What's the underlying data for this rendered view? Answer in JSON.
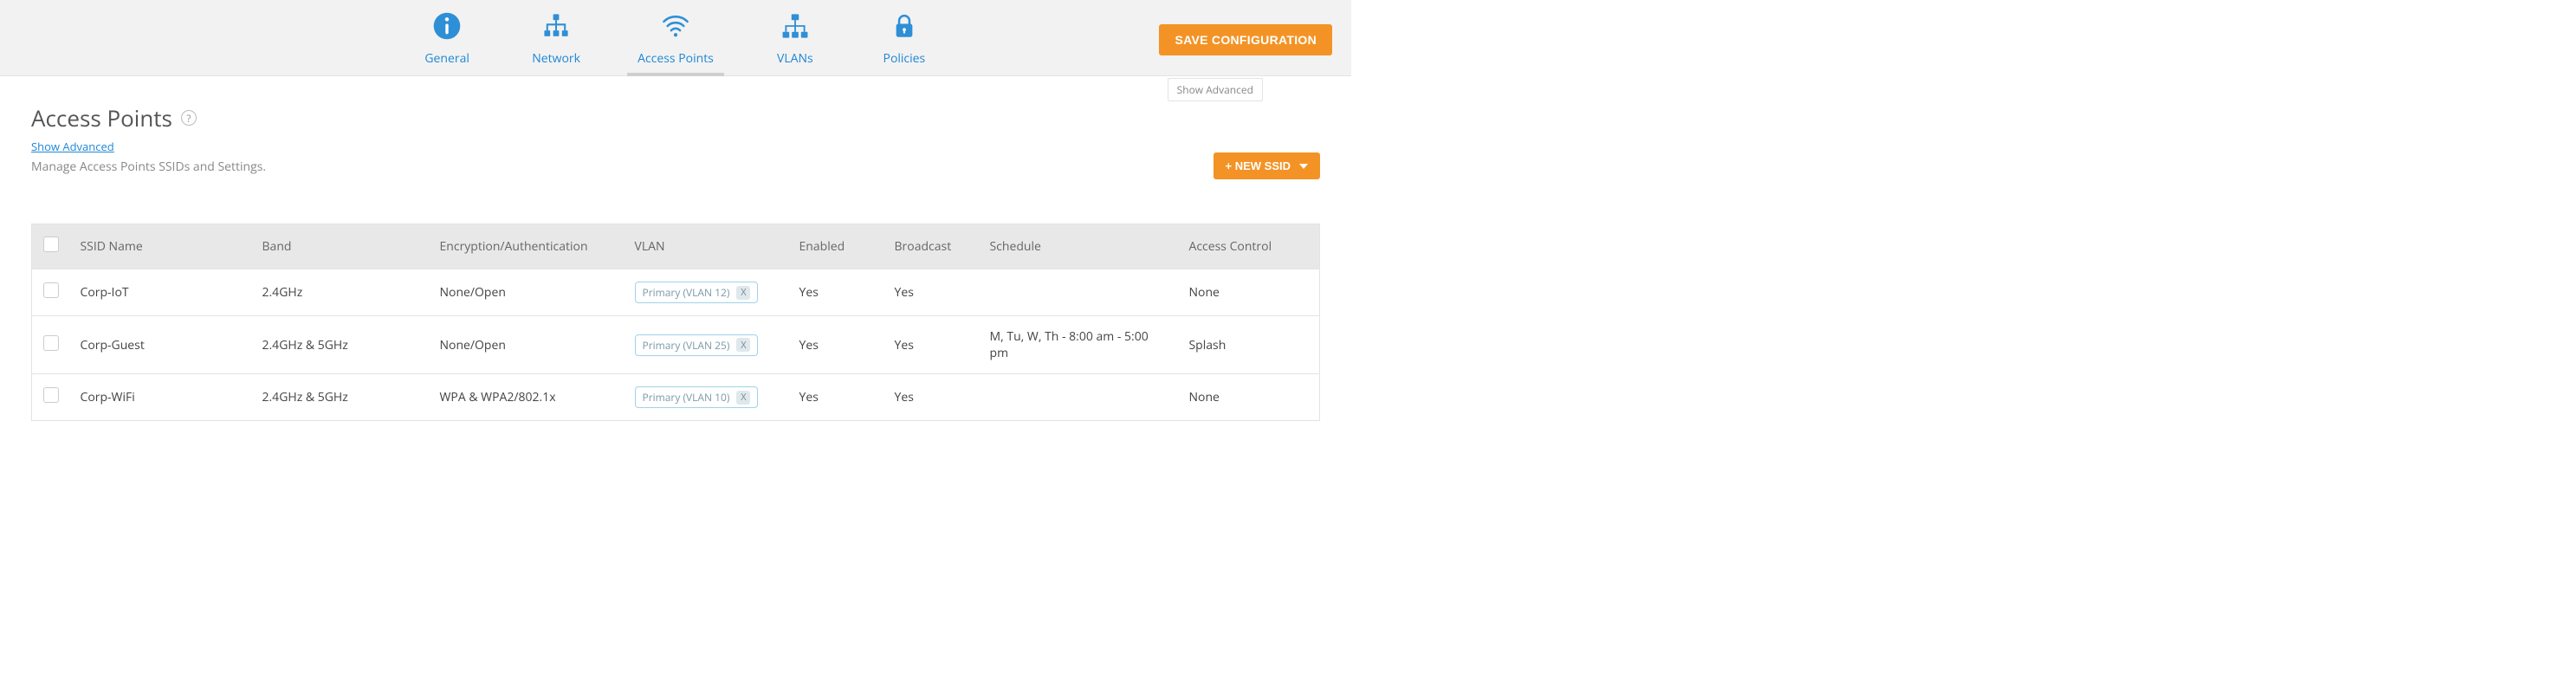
{
  "topbar": {
    "tabs": [
      {
        "key": "general",
        "label": "General"
      },
      {
        "key": "network",
        "label": "Network"
      },
      {
        "key": "access_points",
        "label": "Access Points"
      },
      {
        "key": "vlans",
        "label": "VLANs"
      },
      {
        "key": "policies",
        "label": "Policies"
      }
    ],
    "active_tab": "access_points",
    "save_label": "SAVE CONFIGURATION",
    "show_advanced_label": "Show Advanced"
  },
  "page": {
    "title": "Access Points",
    "show_advanced_link": "Show Advanced",
    "subtitle": "Manage Access Points SSIDs and Settings.",
    "new_ssid_label": "+ NEW SSID"
  },
  "table": {
    "columns": {
      "ssid": "SSID Name",
      "band": "Band",
      "enc": "Encryption/Authentication",
      "vlan": "VLAN",
      "enabled": "Enabled",
      "broadcast": "Broadcast",
      "schedule": "Schedule",
      "acl": "Access Control"
    },
    "rows": [
      {
        "ssid": "Corp-IoT",
        "band": "2.4GHz",
        "enc": "None/Open",
        "vlan": "Primary (VLAN 12)",
        "enabled": "Yes",
        "broadcast": "Yes",
        "schedule": "",
        "acl": "None"
      },
      {
        "ssid": "Corp-Guest",
        "band": "2.4GHz & 5GHz",
        "enc": "None/Open",
        "vlan": "Primary (VLAN 25)",
        "enabled": "Yes",
        "broadcast": "Yes",
        "schedule": "M, Tu, W, Th - 8:00 am - 5:00 pm",
        "acl": "Splash"
      },
      {
        "ssid": "Corp-WiFi",
        "band": "2.4GHz & 5GHz",
        "enc": "WPA & WPA2/802.1x",
        "vlan": "Primary (VLAN 10)",
        "enabled": "Yes",
        "broadcast": "Yes",
        "schedule": "",
        "acl": "None"
      }
    ]
  },
  "colors": {
    "accent_blue": "#2f8fd6",
    "accent_orange": "#f39325",
    "header_bg": "#f2f2f2",
    "table_header_bg": "#e8e8e8",
    "border": "#e3e3e3",
    "vlan_tag_border": "#9fd3e8"
  }
}
